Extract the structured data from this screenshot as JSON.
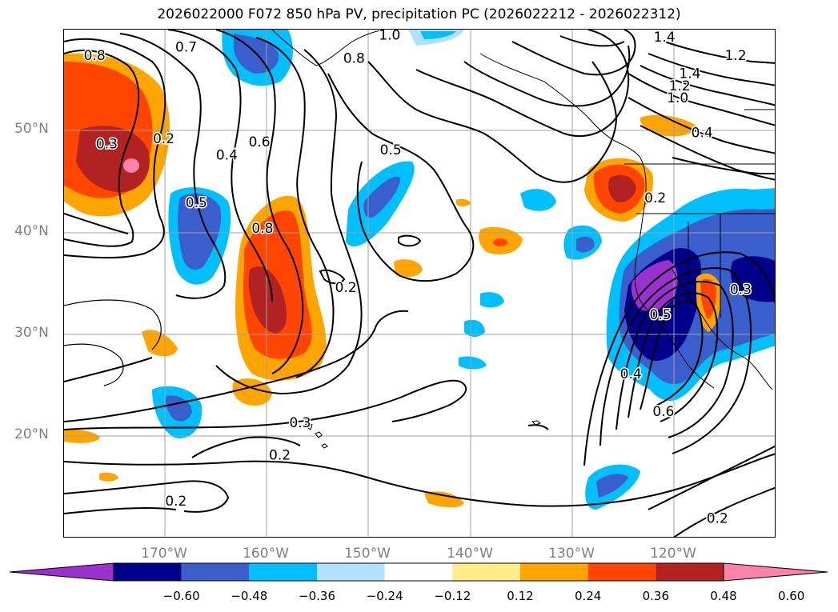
{
  "title": "2026022000 F072 850 hPa PV, precipitation PC (2026022212 - 2026022312)",
  "colors": {
    "land_outline": "#000000",
    "grid": "#a0a0a0",
    "axis_label": "#808080"
  },
  "map": {
    "lon_range": [
      -180,
      -110
    ],
    "lat_range": [
      10,
      60
    ],
    "lat_ticks": [
      {
        "value": 50,
        "label": "50°N"
      },
      {
        "value": 40,
        "label": "40°N"
      },
      {
        "value": 30,
        "label": "30°N"
      },
      {
        "value": 20,
        "label": "20°N"
      }
    ],
    "lon_ticks": [
      {
        "value": -170,
        "label": "170°W"
      },
      {
        "value": -160,
        "label": "160°W"
      },
      {
        "value": -150,
        "label": "150°W"
      },
      {
        "value": -140,
        "label": "140°W"
      },
      {
        "value": -130,
        "label": "130°W"
      },
      {
        "value": -120,
        "label": "120°W"
      }
    ],
    "contour_labels": [
      {
        "text": "0.8",
        "lon": -177,
        "lat": 57.5
      },
      {
        "text": "0.7",
        "lon": -168,
        "lat": 58.3
      },
      {
        "text": "0.8",
        "lon": -151.5,
        "lat": 57.2
      },
      {
        "text": "1.0",
        "lon": -148,
        "lat": 59.5
      },
      {
        "text": "1.4",
        "lon": -121,
        "lat": 59.3
      },
      {
        "text": "1.2",
        "lon": -114,
        "lat": 57.5
      },
      {
        "text": "1.4",
        "lon": -118.5,
        "lat": 55.7
      },
      {
        "text": "1.2",
        "lon": -119.5,
        "lat": 54.5
      },
      {
        "text": "1.0",
        "lon": -119.7,
        "lat": 53.3
      },
      {
        "text": "0.4",
        "lon": -117.3,
        "lat": 49.9
      },
      {
        "text": "0.3",
        "lon": -175.8,
        "lat": 48.8
      },
      {
        "text": "0.2",
        "lon": -170.2,
        "lat": 49.3
      },
      {
        "text": "0.4",
        "lon": -164,
        "lat": 47.7
      },
      {
        "text": "0.6",
        "lon": -160.8,
        "lat": 49.0
      },
      {
        "text": "0.5",
        "lon": -147.9,
        "lat": 48.2
      },
      {
        "text": "0.5",
        "lon": -167,
        "lat": 43.0
      },
      {
        "text": "0.8",
        "lon": -160.5,
        "lat": 40.5
      },
      {
        "text": "0.2",
        "lon": -121.9,
        "lat": 43.5
      },
      {
        "text": "0.2",
        "lon": -152.3,
        "lat": 34.7
      },
      {
        "text": "0.3",
        "lon": -113.5,
        "lat": 34.5
      },
      {
        "text": "0.5",
        "lon": -121.4,
        "lat": 32.0
      },
      {
        "text": "0.4",
        "lon": -124.3,
        "lat": 26.2
      },
      {
        "text": "0.6",
        "lon": -121.1,
        "lat": 22.5
      },
      {
        "text": "0.3",
        "lon": -156.8,
        "lat": 21.4
      },
      {
        "text": "0.2",
        "lon": -158.8,
        "lat": 18.2
      },
      {
        "text": "0.2",
        "lon": -169,
        "lat": 13.7
      },
      {
        "text": "0.2",
        "lon": -115.8,
        "lat": 12.0
      }
    ]
  },
  "colorbar": {
    "ticks": [
      "−0.60",
      "−0.48",
      "−0.36",
      "−0.24",
      "−0.12",
      "0.12",
      "0.24",
      "0.36",
      "0.48",
      "0.60"
    ],
    "colors": [
      "#9932cc",
      "#00008b",
      "#3a5fcd",
      "#00bfff",
      "#b0e2ff",
      "#ffffff",
      "#ffec8b",
      "#ffa500",
      "#ff4500",
      "#b22222",
      "#ff82ab"
    ]
  }
}
